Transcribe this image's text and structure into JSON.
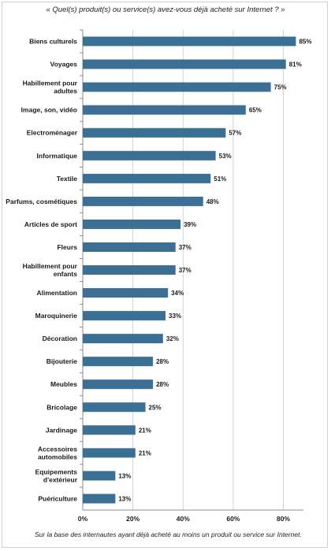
{
  "footnote": "Sur la base des internautes ayant déjà acheté au moins un produit ou service sur Internet.",
  "chart_data": {
    "type": "bar",
    "orientation": "horizontal",
    "title": "« Quel(s) produit(s) ou service(s) avez-vous déjà acheté sur Internet ? »",
    "categories": [
      [
        "Biens culturels"
      ],
      [
        "Voyages"
      ],
      [
        "Habillement pour",
        "adultes"
      ],
      [
        "Image, son, vidéo"
      ],
      [
        "Electroménager"
      ],
      [
        "Informatique"
      ],
      [
        "Textile"
      ],
      [
        "Parfums, cosmétiques"
      ],
      [
        "Articles de sport"
      ],
      [
        "Fleurs"
      ],
      [
        "Habillement pour",
        "enfants"
      ],
      [
        "Alimentation"
      ],
      [
        "Maroquinerie"
      ],
      [
        "Décoration"
      ],
      [
        "Bijouterie"
      ],
      [
        "Meubles"
      ],
      [
        "Bricolage"
      ],
      [
        "Jardinage"
      ],
      [
        "Accessoires",
        "automobiles"
      ],
      [
        "Equipements",
        "d'extérieur"
      ],
      [
        "Puériculture"
      ]
    ],
    "values": [
      85,
      81,
      75,
      65,
      57,
      53,
      51,
      48,
      39,
      37,
      37,
      34,
      33,
      32,
      28,
      28,
      25,
      21,
      21,
      13,
      13
    ],
    "value_labels": [
      "85%",
      "81%",
      "75%",
      "65%",
      "57%",
      "53%",
      "51%",
      "48%",
      "39%",
      "37%",
      "37%",
      "34%",
      "33%",
      "32%",
      "28%",
      "28%",
      "25%",
      "21%",
      "21%",
      "13%",
      "13%"
    ],
    "x_ticks": [
      0,
      20,
      40,
      60,
      80
    ],
    "x_tick_labels": [
      "0%",
      "20%",
      "40%",
      "60%",
      "80%"
    ],
    "xlim": [
      0,
      88
    ],
    "grid": true,
    "bar_color": "#3b6f93",
    "grid_color": "#c8c8c8"
  }
}
